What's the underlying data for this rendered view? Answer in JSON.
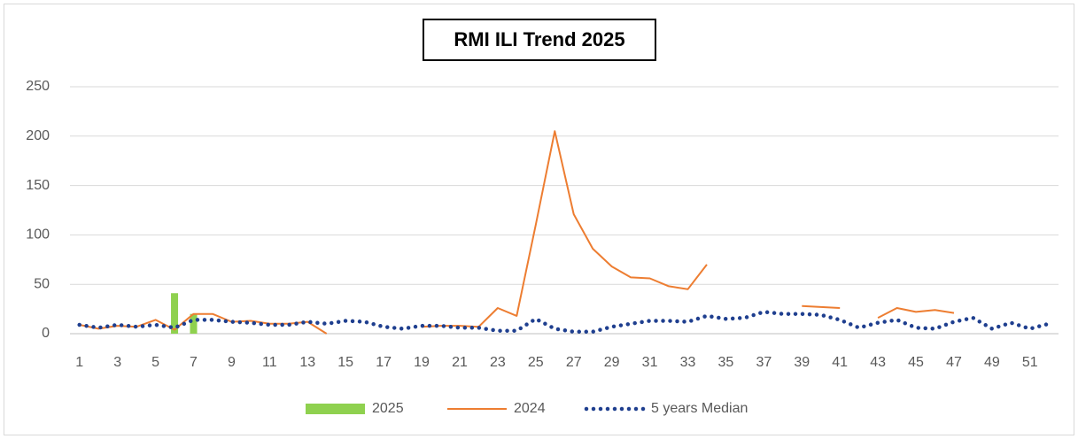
{
  "chart_data": {
    "type": "line",
    "title": "RMI ILI Trend 2025",
    "categories": [
      "1",
      null,
      "3",
      null,
      "5",
      null,
      "7",
      null,
      "9",
      null,
      "11",
      null,
      "13",
      null,
      "15",
      null,
      "17",
      null,
      "19",
      null,
      "21",
      null,
      "23",
      null,
      "25",
      null,
      "27",
      null,
      "29",
      null,
      "31",
      null,
      "33",
      null,
      "35",
      null,
      "37",
      null,
      "39",
      null,
      "41",
      null,
      "43",
      null,
      "45",
      null,
      "47",
      null,
      "49",
      null,
      "51",
      null
    ],
    "ylim": [
      0,
      250
    ],
    "yticks": [
      0,
      50,
      100,
      150,
      200,
      250
    ],
    "grid": true,
    "legend": "bottom",
    "series": [
      {
        "name": "2025",
        "type": "bar",
        "color": "#8fd14f",
        "values": [
          null,
          null,
          null,
          null,
          null,
          41,
          20,
          null,
          null,
          null,
          null,
          null,
          null,
          null,
          null,
          null,
          null,
          null,
          null,
          null,
          null,
          null,
          null,
          null,
          null,
          null,
          null,
          null,
          null,
          null,
          null,
          null,
          null,
          null,
          null,
          null,
          null,
          null,
          null,
          null,
          null,
          null,
          null,
          null,
          null,
          null,
          null,
          null,
          null,
          null,
          null,
          null
        ]
      },
      {
        "name": "2024",
        "type": "line",
        "color": "#ed7d31",
        "values": [
          9,
          5,
          8,
          7,
          14,
          4,
          20,
          20,
          12,
          13,
          10,
          10,
          12,
          0,
          null,
          null,
          null,
          null,
          7,
          8,
          8,
          7,
          26,
          18,
          110,
          205,
          121,
          86,
          68,
          57,
          56,
          48,
          45,
          70,
          null,
          null,
          null,
          null,
          28,
          27,
          26,
          null,
          16,
          26,
          22,
          24,
          21,
          null,
          null,
          null,
          null,
          null
        ]
      },
      {
        "name": "5 years Median",
        "type": "dotted",
        "color": "#1f3f8f",
        "values": [
          9,
          6,
          9,
          7,
          9,
          6,
          14,
          14,
          12,
          11,
          9,
          9,
          12,
          10,
          13,
          12,
          7,
          5,
          8,
          8,
          6,
          6,
          3,
          3,
          15,
          5,
          2,
          2,
          7,
          10,
          13,
          13,
          12,
          18,
          15,
          16,
          22,
          20,
          20,
          19,
          14,
          6,
          11,
          14,
          6,
          5,
          12,
          16,
          5,
          11,
          5,
          10
        ]
      }
    ]
  }
}
